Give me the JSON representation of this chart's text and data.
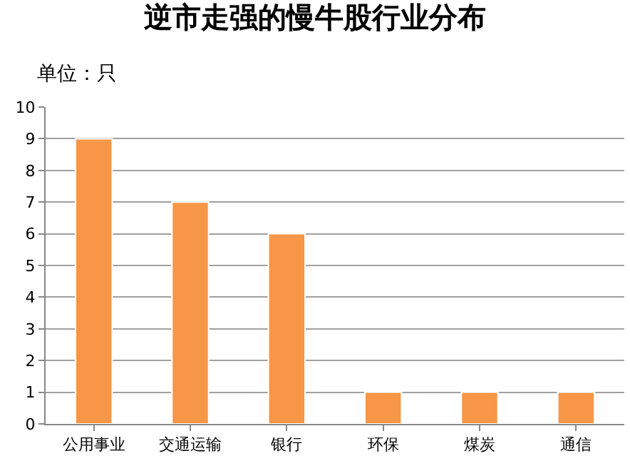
{
  "chart_data": {
    "type": "bar",
    "title": "逆市走强的慢牛股行业分布",
    "annotations": [
      "单位：只"
    ],
    "categories": [
      "公用事业",
      "交通运输",
      "银行",
      "环保",
      "煤炭",
      "通信"
    ],
    "values": [
      9,
      7,
      6,
      1,
      1,
      1
    ],
    "color": "#f79646",
    "ylim": [
      0,
      10
    ],
    "yticks": [
      0,
      1,
      2,
      3,
      4,
      5,
      6,
      7,
      8,
      9,
      10
    ],
    "grid": "y"
  }
}
